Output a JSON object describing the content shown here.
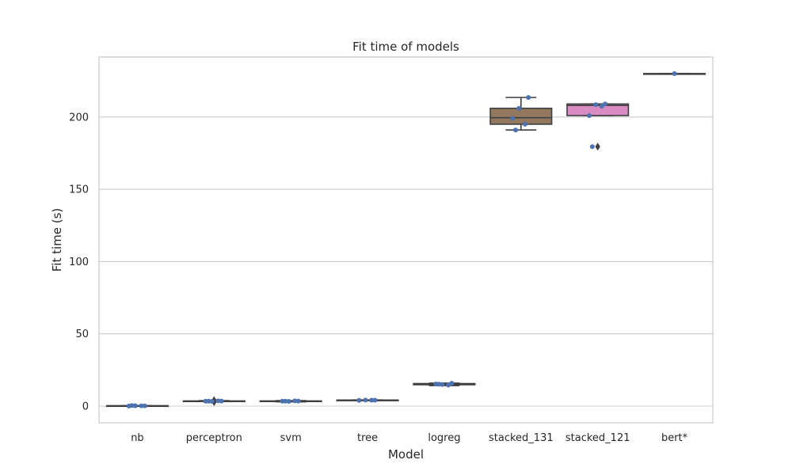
{
  "chart_data": {
    "type": "box",
    "title": "Fit time of models",
    "xlabel": "Model",
    "ylabel": "Fit time (s)",
    "ylim": [
      -11.5,
      241.5
    ],
    "yticks": [
      0,
      50,
      100,
      150,
      200
    ],
    "grid": "horizontal",
    "categories": [
      "nb",
      "perceptron",
      "svm",
      "tree",
      "logreg",
      "stacked_131",
      "stacked_121",
      "bert*"
    ],
    "boxes": [
      {
        "category": "nb",
        "q1": 0.1,
        "median": 0.2,
        "q3": 0.3,
        "whisker_low": 0.0,
        "whisker_high": 0.4,
        "outliers": [],
        "color": "#4c72b0"
      },
      {
        "category": "perceptron",
        "q1": 3.3,
        "median": 3.4,
        "q3": 3.6,
        "whisker_low": 3.2,
        "whisker_high": 3.8,
        "outliers": [
          2.8,
          4.1
        ],
        "color": "#dd8452"
      },
      {
        "category": "svm",
        "q1": 3.2,
        "median": 3.4,
        "q3": 3.6,
        "whisker_low": 3.0,
        "whisker_high": 3.8,
        "outliers": [],
        "color": "#55a868"
      },
      {
        "category": "tree",
        "q1": 4.0,
        "median": 4.1,
        "q3": 4.2,
        "whisker_low": 3.9,
        "whisker_high": 4.3,
        "outliers": [],
        "color": "#c44e52"
      },
      {
        "category": "logreg",
        "q1": 14.8,
        "median": 15.2,
        "q3": 15.6,
        "whisker_low": 14.2,
        "whisker_high": 15.9,
        "outliers": [],
        "color": "#8172b3"
      },
      {
        "category": "stacked_131",
        "q1": 195,
        "median": 199.5,
        "q3": 206,
        "whisker_low": 191,
        "whisker_high": 213.5,
        "outliers": [],
        "color": "#937860"
      },
      {
        "category": "stacked_121",
        "q1": 201,
        "median": 208,
        "q3": 209,
        "whisker_low": 201,
        "whisker_high": 209,
        "outliers": [
          179.5
        ],
        "color": "#da8bc3"
      },
      {
        "category": "bert*",
        "q1": 230,
        "median": 230,
        "q3": 230,
        "whisker_low": 230,
        "whisker_high": 230,
        "outliers": [],
        "color": "#8c8c8c"
      }
    ],
    "points": [
      {
        "category": "nb",
        "values": [
          0.1,
          0.2,
          0.3,
          0.2,
          0.4
        ]
      },
      {
        "category": "perceptron",
        "values": [
          3.4,
          3.5,
          3.3,
          3.6,
          3.4
        ]
      },
      {
        "category": "svm",
        "values": [
          3.4,
          3.5,
          3.3,
          3.6,
          3.4
        ]
      },
      {
        "category": "tree",
        "values": [
          4.0,
          4.1,
          4.2,
          4.1
        ]
      },
      {
        "category": "logreg",
        "values": [
          15.3,
          15.8,
          15.0,
          14.6,
          15.2
        ]
      },
      {
        "category": "stacked_131",
        "values": [
          199,
          213.5,
          206,
          195,
          191
        ]
      },
      {
        "category": "stacked_121",
        "values": [
          201,
          209,
          208.5,
          207.5,
          179.5
        ]
      },
      {
        "category": "bert*",
        "values": [
          230
        ]
      }
    ],
    "point_color": "#4c72b0"
  }
}
